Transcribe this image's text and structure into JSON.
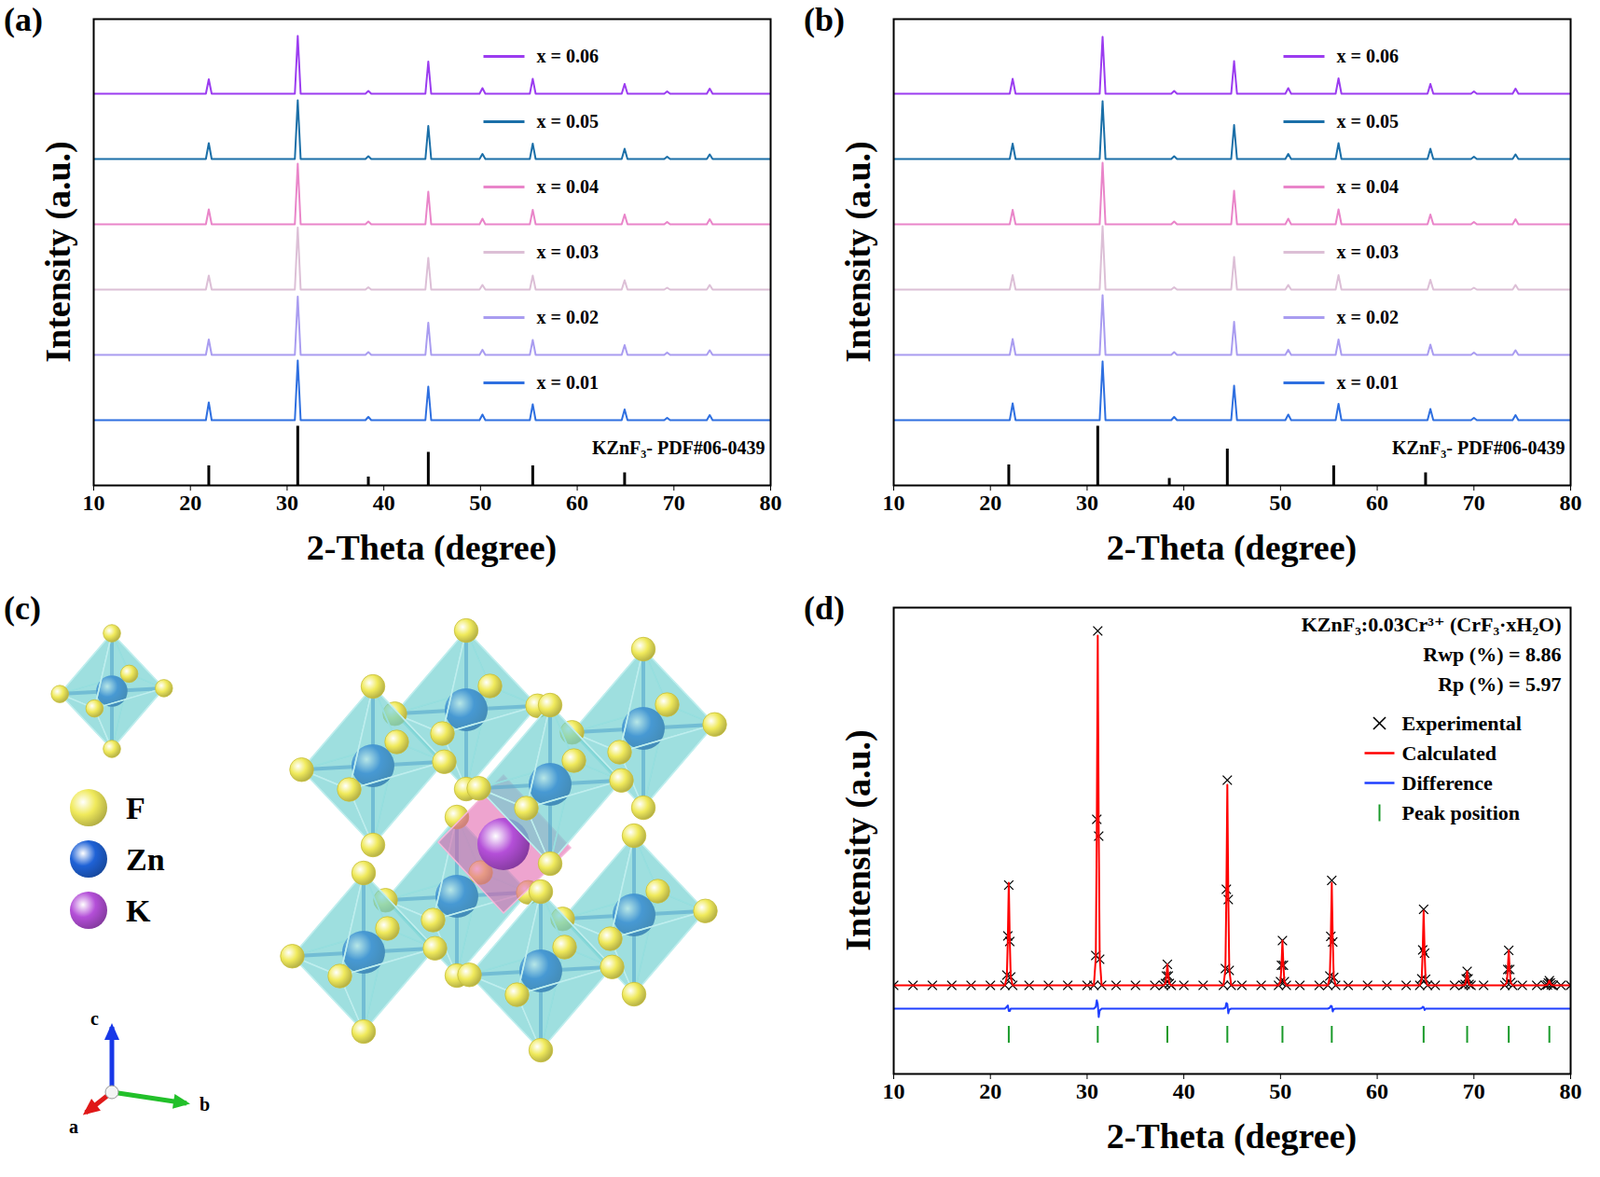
{
  "chart_data": [
    {
      "type": "line",
      "panel_label": "(a)",
      "x_label": "2-Theta (degree)",
      "y_label": "Intensity (a.u.)",
      "xlim": [
        10,
        80
      ],
      "xticks": [
        10,
        20,
        30,
        40,
        50,
        60,
        70,
        80
      ],
      "ylim": [
        0,
        100
      ],
      "tick_labels": "x",
      "x": [
        10,
        21.6,
        21.9,
        22.2,
        30.8,
        31.1,
        31.4,
        38.1,
        38.4,
        38.7,
        44.3,
        44.6,
        44.9,
        49.9,
        50.2,
        50.5,
        55.1,
        55.4,
        55.7,
        64.6,
        64.9,
        65.2,
        69.0,
        69.3,
        69.6,
        73.4,
        73.7,
        74.0,
        80
      ],
      "series": [
        {
          "name": "x = 0.01",
          "color": "#2e6fe0",
          "values": [
            14,
            14,
            17.8,
            14,
            14,
            26.8,
            14,
            14,
            14.7,
            14,
            14,
            21.2,
            14,
            14,
            15.2,
            14,
            14,
            17.4,
            14,
            14,
            16.3,
            14,
            14,
            14.5,
            14,
            14,
            15.1,
            14,
            14
          ]
        },
        {
          "name": "x = 0.02",
          "color": "#a99cf0",
          "values": [
            28,
            28,
            31.3,
            28,
            28,
            40.5,
            28,
            28,
            28.6,
            28,
            28,
            34.9,
            28,
            28,
            29.1,
            28,
            28,
            31.2,
            28,
            28,
            30.1,
            28,
            28,
            28.5,
            28,
            28,
            29,
            28,
            28
          ]
        },
        {
          "name": "x = 0.03",
          "color": "#dcbfd6",
          "values": [
            42,
            42,
            45,
            42,
            42,
            55.3,
            42,
            42,
            42.5,
            42,
            42,
            48.8,
            42,
            42,
            43,
            42,
            42,
            45,
            42,
            42,
            44,
            42,
            42,
            42.4,
            42,
            42,
            43,
            42,
            42
          ]
        },
        {
          "name": "x = 0.04",
          "color": "#e985c9",
          "values": [
            56,
            56,
            59.2,
            56,
            56,
            69,
            56,
            56,
            56.6,
            56,
            56,
            63,
            56,
            56,
            57.2,
            56,
            56,
            59.1,
            56,
            56,
            58.1,
            56,
            56,
            56.5,
            56,
            56,
            57.1,
            56,
            56
          ]
        },
        {
          "name": "x = 0.05",
          "color": "#1b6fa8",
          "values": [
            70,
            70,
            73.4,
            70,
            70,
            82.6,
            70,
            70,
            70.6,
            70,
            70,
            77.1,
            70,
            70,
            71.1,
            70,
            70,
            73.3,
            70,
            70,
            72.2,
            70,
            70,
            70.5,
            70,
            70,
            71,
            70,
            70
          ]
        },
        {
          "name": "x = 0.06",
          "color": "#9b3cf0",
          "values": [
            84,
            84,
            87.1,
            84,
            84,
            96.4,
            84,
            84,
            84.6,
            84,
            84,
            90.9,
            84,
            84,
            85.2,
            84,
            84,
            87.2,
            84,
            84,
            86.1,
            84,
            84,
            84.5,
            84,
            84,
            85.1,
            84,
            84
          ]
        },
        {
          "name": "KZnF₃- PDF#06-0439",
          "type": "bar",
          "color": "#000000",
          "x": [
            21.9,
            31.1,
            38.4,
            44.6,
            55.4,
            64.9
          ],
          "values": [
            4.2,
            12.7,
            1.8,
            7.1,
            4.2,
            2.7
          ]
        }
      ]
    },
    {
      "type": "line",
      "panel_label": "(b)",
      "x_label": "2-Theta (degree)",
      "y_label": "Intensity (a.u.)",
      "xlim": [
        10,
        80
      ],
      "xticks": [
        10,
        20,
        30,
        40,
        50,
        60,
        70,
        80
      ],
      "ylim": [
        0,
        100
      ],
      "tick_labels": "x",
      "x": [
        10,
        22.0,
        22.3,
        22.6,
        31.3,
        31.6,
        31.9,
        38.7,
        39.0,
        39.3,
        44.9,
        45.2,
        45.5,
        50.5,
        50.8,
        51.1,
        55.7,
        56.0,
        56.3,
        65.2,
        65.5,
        65.8,
        69.7,
        70.0,
        70.3,
        74.0,
        74.3,
        74.6,
        80
      ],
      "series": [
        {
          "name": "x = 0.01",
          "color": "#2e6fe0",
          "values": [
            14,
            14,
            17.6,
            14,
            14,
            26.6,
            14,
            14,
            14.7,
            14,
            14,
            21.4,
            14,
            14,
            15.2,
            14,
            14,
            17.5,
            14,
            14,
            16.4,
            14,
            14,
            14.5,
            14,
            14,
            15.1,
            14,
            14
          ]
        },
        {
          "name": "x = 0.02",
          "color": "#a99cf0",
          "values": [
            28,
            28,
            31.4,
            28,
            28,
            40.8,
            28,
            28,
            28.6,
            28,
            28,
            35.1,
            28,
            28,
            29.1,
            28,
            28,
            31.3,
            28,
            28,
            30.2,
            28,
            28,
            28.5,
            28,
            28,
            29,
            28,
            28
          ]
        },
        {
          "name": "x = 0.03",
          "color": "#dcbfd6",
          "values": [
            42,
            42,
            45.1,
            42,
            42,
            55.6,
            42,
            42,
            42.5,
            42,
            42,
            49,
            42,
            42,
            43,
            42,
            42,
            45.1,
            42,
            42,
            44.1,
            42,
            42,
            42.4,
            42,
            42,
            43,
            42,
            42
          ]
        },
        {
          "name": "x = 0.04",
          "color": "#e985c9",
          "values": [
            56,
            56,
            59.1,
            56,
            56,
            69.2,
            56,
            56,
            56.6,
            56,
            56,
            63.2,
            56,
            56,
            57.2,
            56,
            56,
            59.2,
            56,
            56,
            58.1,
            56,
            56,
            56.5,
            56,
            56,
            57.1,
            56,
            56
          ]
        },
        {
          "name": "x = 0.05",
          "color": "#1b6fa8",
          "values": [
            70,
            70,
            73.3,
            70,
            70,
            82.4,
            70,
            70,
            70.6,
            70,
            70,
            77.3,
            70,
            70,
            71.1,
            70,
            70,
            73.4,
            70,
            70,
            72.2,
            70,
            70,
            70.5,
            70,
            70,
            71,
            70,
            70
          ]
        },
        {
          "name": "x = 0.06",
          "color": "#9b3cf0",
          "values": [
            84,
            84,
            87.2,
            84,
            84,
            96.2,
            84,
            84,
            84.6,
            84,
            84,
            91,
            84,
            84,
            85.2,
            84,
            84,
            87.3,
            84,
            84,
            86.1,
            84,
            84,
            84.5,
            84,
            84,
            85.1,
            84,
            84
          ]
        },
        {
          "name": "KZnF₃- PDF#06-0439",
          "type": "bar",
          "color": "#000000",
          "x": [
            21.9,
            31.1,
            38.5,
            44.5,
            55.5,
            65.0
          ],
          "values": [
            4.4,
            12.7,
            1.5,
            7.8,
            4.2,
            2.7
          ]
        }
      ]
    },
    {
      "type": "line",
      "panel_label": "(d)",
      "x_label": "2-Theta (degree)",
      "y_label": "Intensity (a.u.)",
      "xlim": [
        10,
        80
      ],
      "xticks": [
        10,
        20,
        30,
        40,
        50,
        60,
        70,
        80
      ],
      "ylim": [
        0,
        100
      ],
      "tick_labels": "x",
      "legend": "top-right",
      "annotations": [
        "KZnF₃:0.03Cr³⁺ (CrF₃·xH₂O)",
        "Rwp (%) = 8.86",
        "Rp (%) = 5.97"
      ],
      "x": [
        10,
        12,
        14,
        16,
        18,
        20,
        21.5,
        21.7,
        21.8,
        21.9,
        22,
        22.1,
        22.3,
        24,
        26,
        28,
        30,
        30.7,
        30.9,
        31,
        31.1,
        31.2,
        31.3,
        31.5,
        33,
        35,
        37,
        37.9,
        38.1,
        38.2,
        38.3,
        38.4,
        38.5,
        38.7,
        40,
        42,
        44.1,
        44.3,
        44.4,
        44.5,
        44.6,
        44.7,
        44.9,
        46,
        48,
        49.8,
        50,
        50.1,
        50.2,
        50.3,
        50.4,
        50.6,
        52,
        54,
        54.9,
        55.1,
        55.2,
        55.3,
        55.4,
        55.5,
        55.7,
        57,
        59,
        61,
        63,
        64.4,
        64.6,
        64.7,
        64.8,
        64.9,
        65,
        65.2,
        66,
        68,
        68.9,
        69.1,
        69.2,
        69.3,
        69.4,
        69.5,
        69.7,
        71,
        73.2,
        73.4,
        73.5,
        73.6,
        73.7,
        73.8,
        74,
        75,
        76.5,
        77.4,
        77.6,
        77.7,
        77.8,
        77.9,
        78,
        78.2,
        79,
        80
      ],
      "series": [
        {
          "name": "Experimental",
          "type": "scatter",
          "marker": "x",
          "color": "#000000",
          "values": [
            19,
            19,
            19,
            19,
            19,
            19,
            19,
            21.2,
            29.6,
            40.5,
            28.4,
            20.8,
            19,
            19,
            19,
            19,
            19,
            19,
            25.4,
            54.6,
            95,
            51,
            24.6,
            19,
            19,
            19,
            19,
            19,
            19.4,
            21,
            23.5,
            21,
            19.4,
            19,
            19,
            19,
            19,
            22.6,
            39.6,
            63,
            37.4,
            22.2,
            19,
            19,
            19,
            19,
            19.8,
            23.3,
            28.6,
            23.3,
            19.8,
            19,
            19,
            19,
            19,
            21,
            29.5,
            41.5,
            28.3,
            20.7,
            19,
            19,
            19,
            19,
            19,
            19,
            20.4,
            26.6,
            35.3,
            25.9,
            20.3,
            19,
            19,
            19,
            19,
            19.2,
            20.4,
            22,
            20.4,
            19.2,
            19,
            19,
            19,
            19.6,
            22.4,
            26.5,
            22.4,
            19.6,
            19,
            19,
            19,
            19,
            19.1,
            19.5,
            20,
            19.5,
            19.1,
            19,
            19,
            19
          ]
        },
        {
          "name": "Calculated",
          "type": "line",
          "color": "#ff0000",
          "values": [
            19,
            19,
            19,
            19,
            19,
            19,
            19,
            20.8,
            28.9,
            41,
            28.9,
            20.8,
            19,
            19,
            19,
            19,
            19,
            19,
            25,
            52.8,
            94,
            52.8,
            25,
            19,
            19,
            19,
            19,
            19,
            19.4,
            21,
            23.5,
            21,
            19.4,
            19,
            19,
            19,
            19,
            22.4,
            38.4,
            62,
            38.4,
            22.4,
            19,
            19,
            19,
            19,
            19.8,
            23.3,
            28.6,
            23.3,
            19.8,
            19,
            19,
            19,
            19,
            20.8,
            28.9,
            41,
            28.9,
            20.8,
            19,
            19,
            19,
            19,
            19,
            19,
            20.3,
            26.2,
            35,
            26.2,
            20.3,
            19,
            19,
            19,
            19,
            19.2,
            20.4,
            22,
            20.4,
            19.2,
            19,
            19,
            19,
            19.6,
            22.4,
            26.5,
            22.4,
            19.6,
            19,
            19,
            19,
            19,
            19.1,
            19.5,
            20,
            19.5,
            19.1,
            19,
            19,
            19
          ]
        },
        {
          "name": "Difference",
          "type": "line",
          "color": "#1f3fff",
          "values": [
            14,
            14,
            14,
            14,
            14,
            14,
            14,
            14.4,
            14.7,
            13.5,
            13.5,
            14,
            14,
            14,
            14,
            14,
            14,
            14,
            14.4,
            15.8,
            15,
            12.2,
            13.6,
            14,
            14,
            14,
            14,
            14,
            14,
            14,
            14,
            14,
            14,
            14,
            14,
            14,
            14,
            14.2,
            15.2,
            15,
            13,
            13.8,
            14,
            14,
            14,
            14,
            14,
            14,
            14,
            14,
            14,
            14,
            14,
            14,
            14,
            14.2,
            14.6,
            14.5,
            13.4,
            13.9,
            14,
            14,
            14,
            14,
            14,
            14,
            14.1,
            14.4,
            14.3,
            13.7,
            14,
            14,
            14,
            14,
            14,
            14,
            14,
            14,
            14,
            14,
            14,
            14,
            14,
            14,
            14,
            14,
            14,
            14,
            14,
            14,
            14,
            14,
            14,
            14,
            14,
            14,
            14,
            14,
            14,
            14
          ]
        },
        {
          "name": "Peak position",
          "type": "scatter",
          "marker": "tick",
          "color": "#1a9a2a",
          "x": [
            21.9,
            31.1,
            38.3,
            44.5,
            50.2,
            55.3,
            64.8,
            69.3,
            73.6,
            77.8
          ],
          "values": [
            8.5,
            8.5,
            8.5,
            8.5,
            8.5,
            8.5,
            8.5,
            8.5,
            8.5,
            8.5
          ]
        }
      ]
    }
  ],
  "diagram": {
    "panel_label": "(c)",
    "atoms": [
      {
        "label": "F",
        "color": "#f0ea5c"
      },
      {
        "label": "Zn",
        "color": "#1f62d6"
      },
      {
        "label": "K",
        "color": "#b44fd8"
      }
    ],
    "axes": [
      {
        "label": "a",
        "color": "#e01818"
      },
      {
        "label": "b",
        "color": "#22c02a"
      },
      {
        "label": "c",
        "color": "#1838e8"
      }
    ]
  }
}
